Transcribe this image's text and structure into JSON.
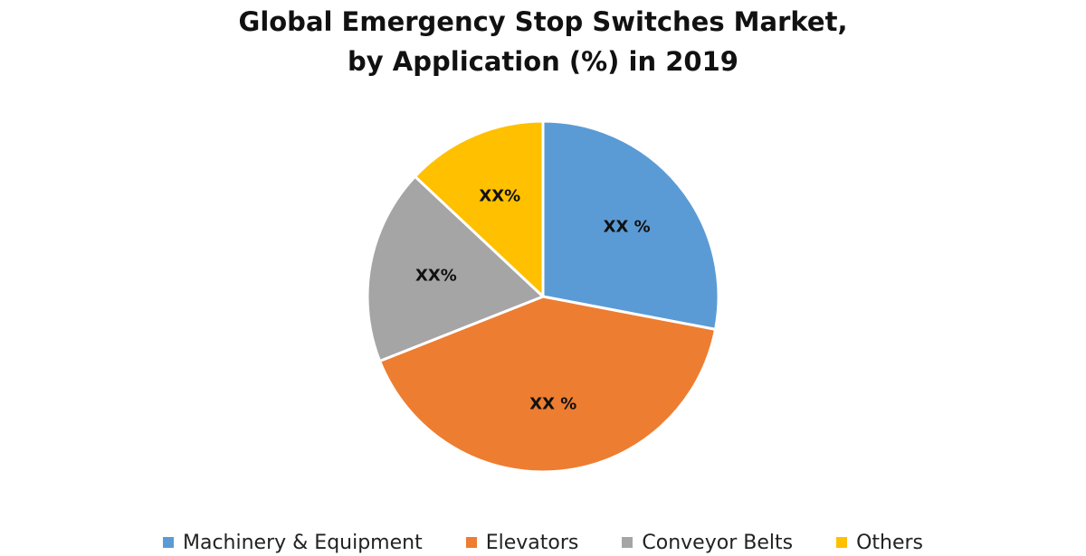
{
  "chart_data": {
    "type": "pie",
    "title_lines": [
      "Global Emergency Stop Switches Market,",
      "by Application (%) in 2019"
    ],
    "slices": [
      {
        "name": "Machinery & Equipment",
        "label": "XX %",
        "value": 28,
        "color": "#5B9BD5"
      },
      {
        "name": "Elevators",
        "label": "XX %",
        "value": 41,
        "color": "#ED7D31"
      },
      {
        "name": "Conveyor Belts",
        "label": "XX%",
        "value": 18,
        "color": "#A5A5A5"
      },
      {
        "name": "Others",
        "label": "XX%",
        "value": 13,
        "color": "#FFC000"
      }
    ],
    "legend_position": "bottom",
    "start_angle_deg": 0,
    "direction": "clockwise"
  }
}
